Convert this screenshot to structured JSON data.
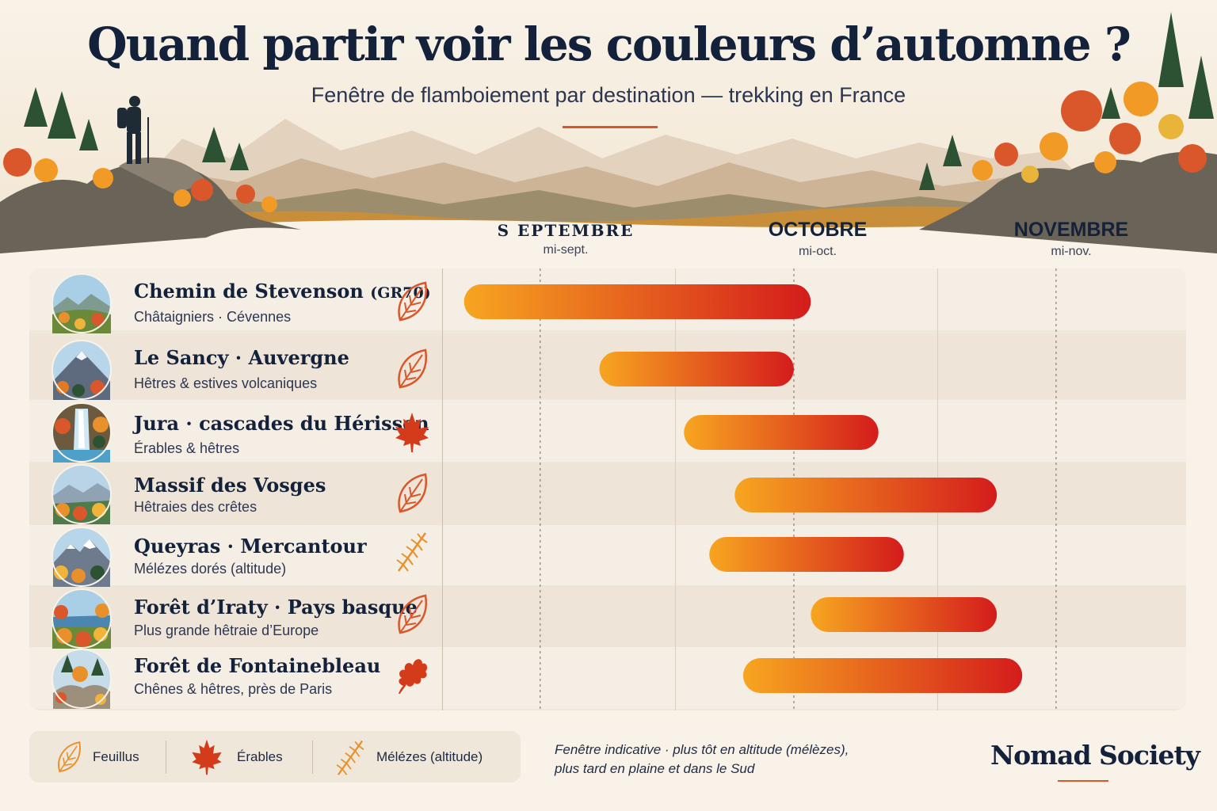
{
  "header": {
    "title": "Quand partir voir les couleurs d’automne ?",
    "subtitle": "Fenêtre de flamboiement par destination — trekking en France"
  },
  "colors": {
    "accent": "#d9572a",
    "bar_start": "#f7a520",
    "bar_end": "#d41c1c",
    "navy": "#13213a"
  },
  "months": [
    {
      "label": "S EPTEMBRE",
      "mid": "mi-sept."
    },
    {
      "label": "OCTOBRE",
      "mid": "mi-oct."
    },
    {
      "label": "NOVEMBRE",
      "mid": "mi-nov."
    }
  ],
  "chart_data": {
    "type": "bar",
    "orientation": "horizontal",
    "subtype": "range",
    "x_axis": "date",
    "xlim": [
      "2000-09-05",
      "2000-11-30"
    ],
    "ticks": [
      "mi-sept.",
      "mi-oct.",
      "mi-nov."
    ],
    "grid": true,
    "categories": [
      "Chemin de Stevenson (GR70)",
      "Le Sancy · Auvergne",
      "Jura · cascades du Hérisson",
      "Massif des Vosges",
      "Queyras · Mercantour",
      "Forêt d’Iraty · Pays basque",
      "Forêt de Fontainebleau"
    ],
    "ranges": [
      [
        "2000-09-06",
        "2000-10-17"
      ],
      [
        "2000-09-22",
        "2000-10-15"
      ],
      [
        "2000-10-02",
        "2000-10-25"
      ],
      [
        "2000-10-08",
        "2000-11-08"
      ],
      [
        "2000-10-05",
        "2000-10-28"
      ],
      [
        "2000-10-17",
        "2000-11-08"
      ],
      [
        "2000-10-09",
        "2000-11-11"
      ]
    ]
  },
  "destinations": [
    {
      "name": "Chemin de Stevenson",
      "name_suffix": "(GR70)",
      "sub": "Châtaigniers · Cévennes",
      "leaf": "feuillus",
      "scene": "valley"
    },
    {
      "name": "Le Sancy · Auvergne",
      "name_suffix": "",
      "sub": "Hêtres & estives volcaniques",
      "leaf": "feuillus",
      "scene": "volcano"
    },
    {
      "name": "Jura · cascades du Hérisson",
      "name_suffix": "",
      "sub": "Érables & hêtres",
      "leaf": "erable",
      "scene": "waterfall"
    },
    {
      "name": "Massif des Vosges",
      "name_suffix": "",
      "sub": "Hêtraies des crêtes",
      "leaf": "feuillus",
      "scene": "ridges"
    },
    {
      "name": "Queyras · Mercantour",
      "name_suffix": "",
      "sub": "Mélézes dorés (altitude)",
      "leaf": "meleze",
      "scene": "alps"
    },
    {
      "name": "Forêt d’Iraty · Pays basque",
      "name_suffix": "",
      "sub": "Plus grande hêtraie d’Europe",
      "leaf": "feuillus",
      "scene": "lake"
    },
    {
      "name": "Forêt de Fontainebleau",
      "name_suffix": "",
      "sub": "Chênes & hêtres, près de Paris",
      "leaf": "chene",
      "scene": "rocks"
    }
  ],
  "legend": [
    {
      "icon": "feuillus",
      "label": "Feuillus"
    },
    {
      "icon": "erable",
      "label": "Érables"
    },
    {
      "icon": "meleze",
      "label": "Mélézes (altitude)"
    }
  ],
  "footer": {
    "note_line1": "Fenêtre indicative · plus tôt en altitude (mélèzes),",
    "note_line2": "plus tard en plaine et dans le Sud",
    "brand": "Nomad Society"
  }
}
